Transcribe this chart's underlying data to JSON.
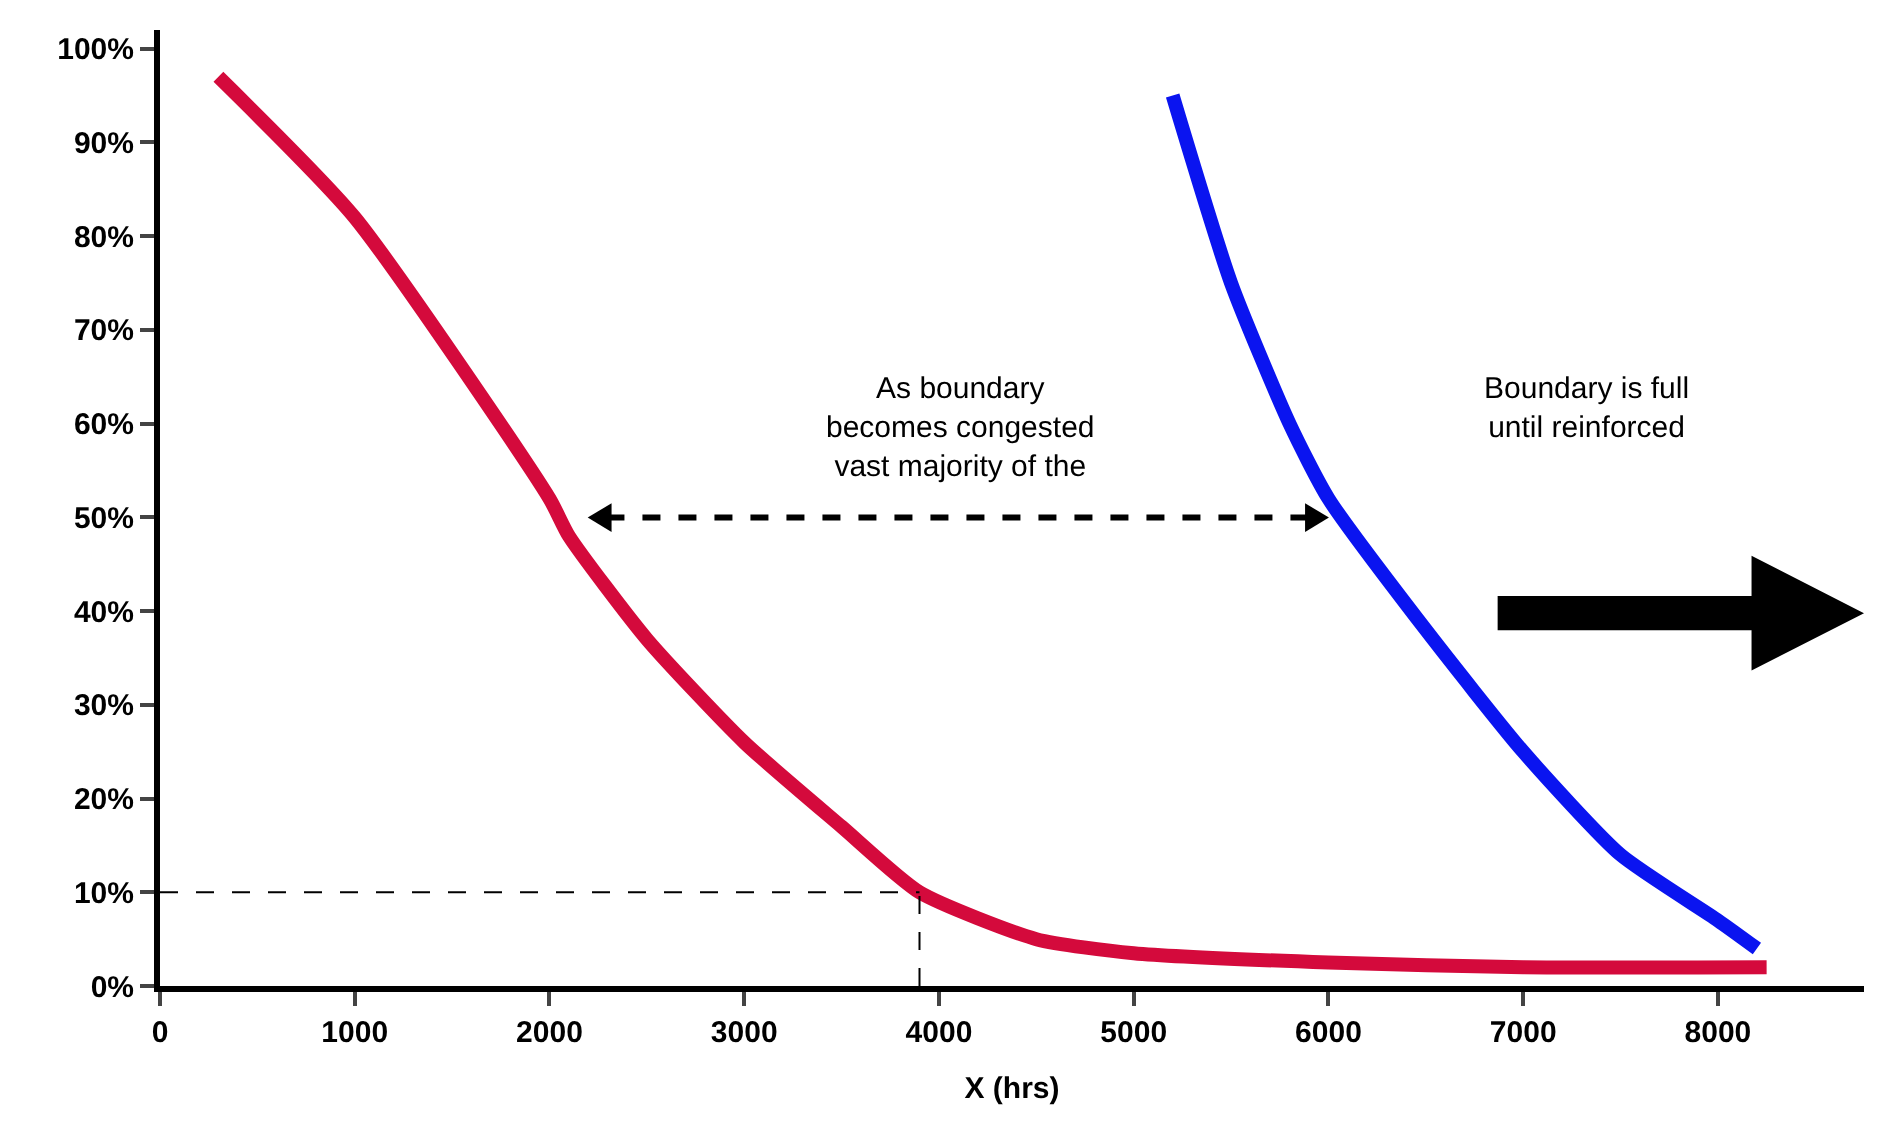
{
  "chart_data": {
    "type": "line",
    "xlabel": "X (hrs)",
    "xlim": [
      0,
      8750
    ],
    "xticks": [
      0,
      1000,
      2000,
      3000,
      4000,
      5000,
      6000,
      7000,
      8000
    ],
    "ylim": [
      0,
      102
    ],
    "yticks": [
      {
        "value": 0,
        "label": "0%"
      },
      {
        "value": 10,
        "label": "10%"
      },
      {
        "value": 20,
        "label": "20%"
      },
      {
        "value": 30,
        "label": "30%"
      },
      {
        "value": 40,
        "label": "40%"
      },
      {
        "value": 50,
        "label": "50%"
      },
      {
        "value": 60,
        "label": "60%"
      },
      {
        "value": 70,
        "label": "70%"
      },
      {
        "value": 80,
        "label": "80%"
      },
      {
        "value": 90,
        "label": "90%"
      },
      {
        "value": 100,
        "label": "100%"
      }
    ],
    "marker": "none",
    "series": [
      {
        "color": "#d40a3c",
        "x": [
          300,
          1000,
          2000,
          2100,
          2500,
          3000,
          3500,
          3900,
          4500,
          5000,
          6000,
          7000,
          8250
        ],
        "values": [
          97,
          82,
          52,
          48,
          37,
          26,
          17,
          10,
          5,
          3.5,
          2.5,
          2,
          2
        ]
      },
      {
        "color": "#0a14f0",
        "x": [
          5200,
          5500,
          5800,
          6000,
          6500,
          7000,
          7500,
          8000,
          8200
        ],
        "values": [
          95,
          75,
          60,
          52,
          38,
          25,
          14,
          7,
          4
        ]
      }
    ],
    "ref_lines": [
      {
        "axis": "y",
        "value": 10,
        "line_style": "dashed"
      },
      {
        "axis": "x",
        "value": 3900,
        "line_style": "dashed"
      }
    ],
    "annotations": [
      "As boundary\nbecomes congested\nvast majority of the",
      "Boundary is full\nuntil reinforced"
    ]
  }
}
